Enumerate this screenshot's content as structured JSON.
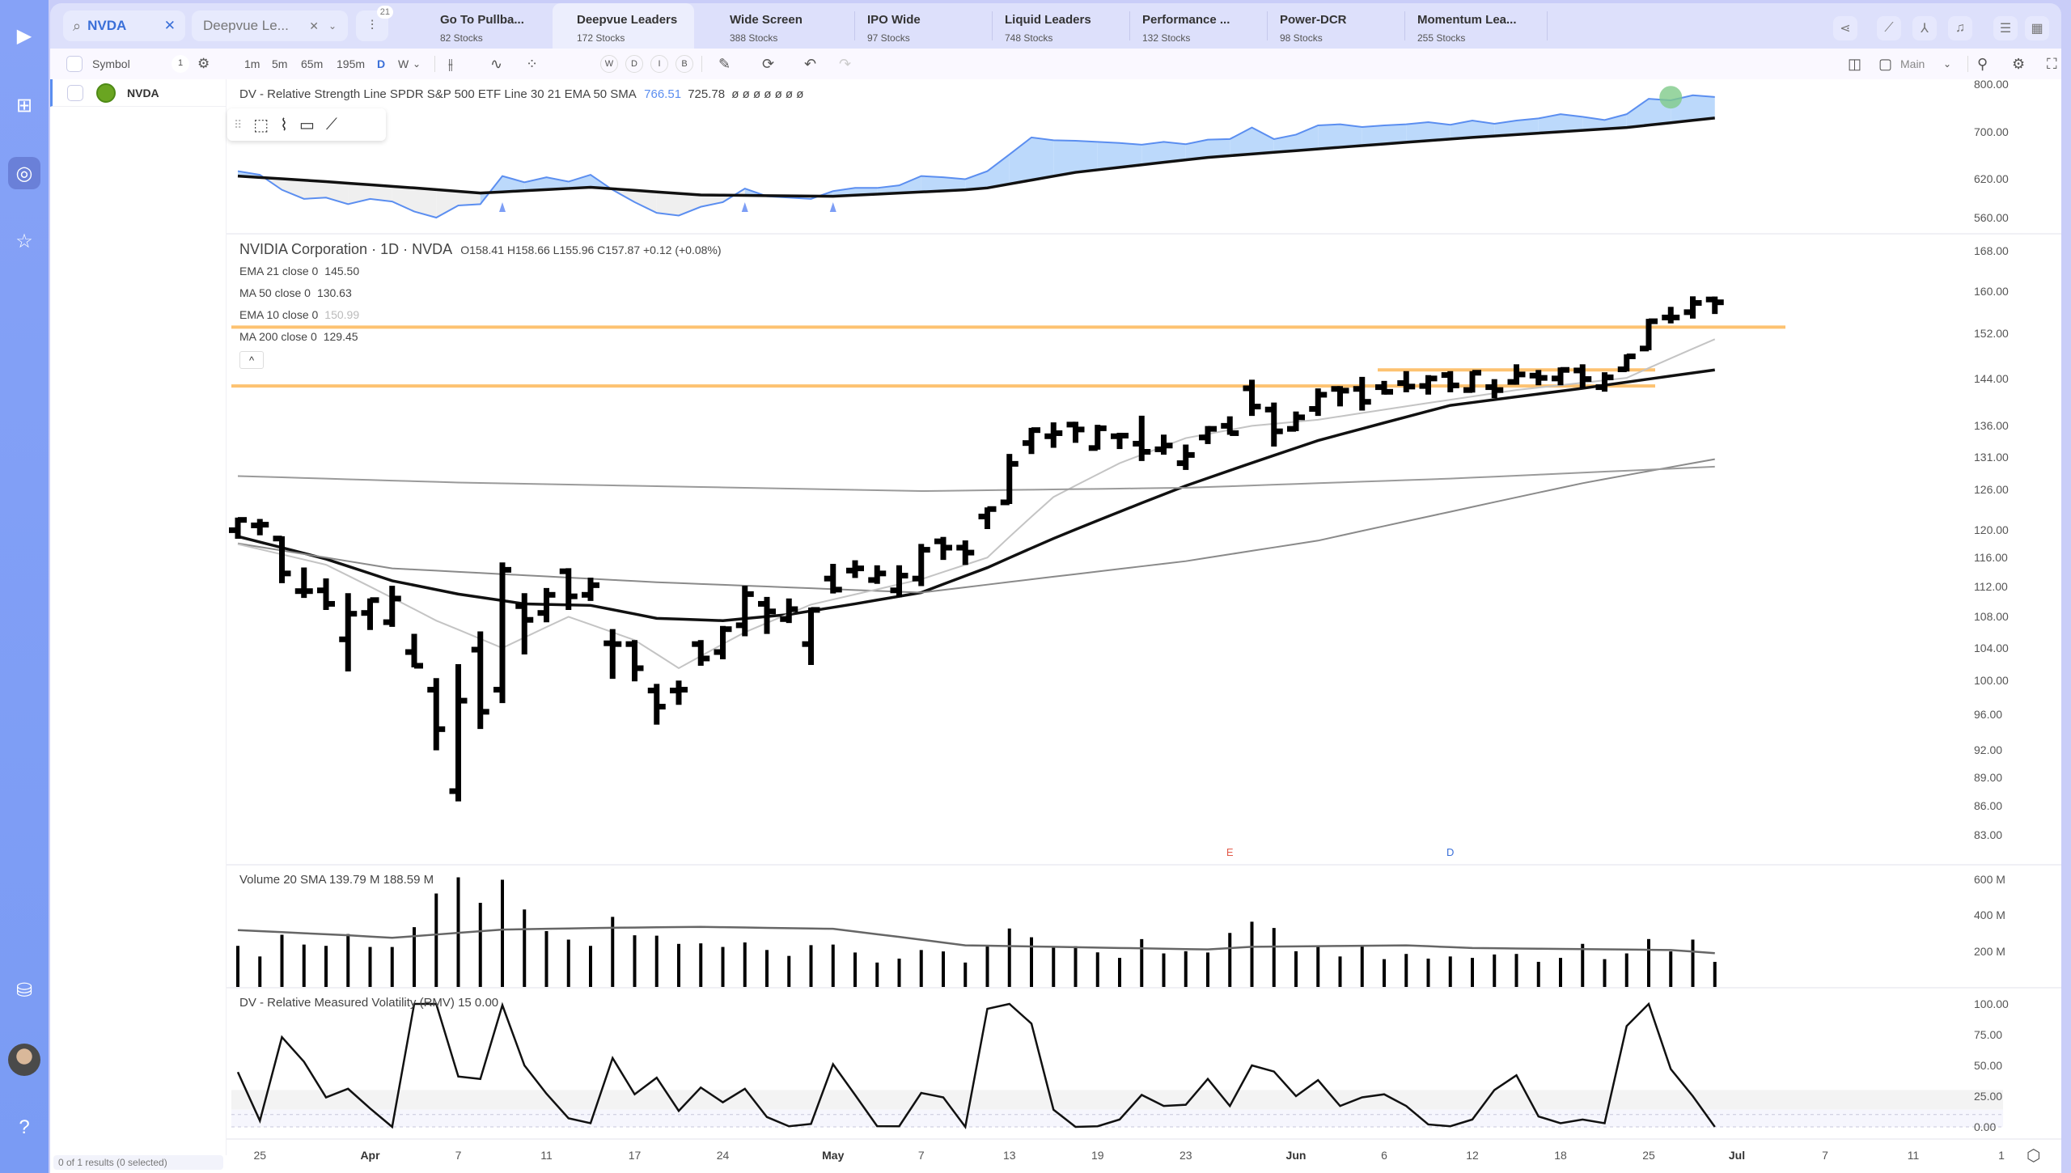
{
  "sidebar": {
    "items": [
      {
        "icon": "logo-play-icon",
        "glyph": "▶"
      },
      {
        "icon": "layout-icon",
        "glyph": "⊞"
      },
      {
        "icon": "radar-icon",
        "glyph": "◎",
        "active": true
      },
      {
        "icon": "star-icon",
        "glyph": "☆"
      },
      {
        "icon": "learn-icon",
        "glyph": "⛁"
      },
      {
        "icon": "avatar",
        "glyph": ""
      },
      {
        "icon": "help-icon",
        "glyph": "?"
      }
    ]
  },
  "topbar": {
    "search_value": "NVDA",
    "watchlist_value": "Deepvue Le...",
    "filter_badge": "21",
    "tabs": [
      {
        "title": "Go To Pullba...",
        "sub": "82 Stocks"
      },
      {
        "title": "Deepvue Leaders",
        "sub": "172 Stocks",
        "active": true
      },
      {
        "title": "Wide Screen",
        "sub": "388 Stocks"
      },
      {
        "title": "IPO Wide",
        "sub": "97 Stocks"
      },
      {
        "title": "Liquid Leaders",
        "sub": "748 Stocks"
      },
      {
        "title": "Performance ...",
        "sub": "132 Stocks"
      },
      {
        "title": "Power-DCR",
        "sub": "98 Stocks"
      },
      {
        "title": "Momentum Lea...",
        "sub": "255 Stocks"
      }
    ]
  },
  "toolbar": {
    "symbol_label": "Symbol",
    "count": "1",
    "timeframes": [
      "1m",
      "5m",
      "65m",
      "195m",
      "D",
      "W"
    ],
    "active_timeframe": "D",
    "period_buttons": [
      "W",
      "D",
      "I",
      "B"
    ],
    "layout_label": "Main"
  },
  "list": {
    "rows": [
      {
        "symbol": "NVDA"
      }
    ],
    "status": "0 of 1 results (0 selected)"
  },
  "rs_legend": {
    "name": "DV - Relative Strength Line SPDR S&P 500 ETF Line 30 21 EMA 50 SMA",
    "value1": "766.51",
    "value2": "725.78",
    "extras": "ø ø ø ø ø ø ø"
  },
  "price_legend": {
    "title": "NVIDIA Corporation · 1D · NVDA",
    "ohlc": "O158.41 H158.66 L155.96 C157.87 +0.12 (+0.08%)",
    "studies": [
      {
        "label": "EMA 21 close 0",
        "value": "145.50"
      },
      {
        "label": "MA 50 close 0",
        "value": "130.63"
      },
      {
        "label": "EMA 10 close 0",
        "value": "150.99",
        "muted": true
      },
      {
        "label": "MA 200 close 0",
        "value": "129.45"
      }
    ]
  },
  "volume_legend": "Volume 20 SMA  139.79 M  188.59 M",
  "rmv_legend": "DV - Relative Measured Volatility (RMV) 15  0.00",
  "colors": {
    "rs_line": "#5b8ef0",
    "rs_fill_above": "#bcd9fb",
    "rs_fill_below": "#efefef",
    "level": "#fdc271",
    "bars": "#000000",
    "earnings": "#e25a4a",
    "dividend": "#3a6fd8"
  },
  "chart_data": {
    "type": "ohlc",
    "price_scale": "log",
    "dates": [
      "Mar 24",
      "Mar 25",
      "Mar 26",
      "Mar 27",
      "Mar 28",
      "Mar 31",
      "Apr 1",
      "Apr 2",
      "Apr 3",
      "Apr 4",
      "Apr 7",
      "Apr 8",
      "Apr 9",
      "Apr 10",
      "Apr 11",
      "Apr 14",
      "Apr 15",
      "Apr 16",
      "Apr 17",
      "Apr 21",
      "Apr 22",
      "Apr 23",
      "Apr 24",
      "Apr 25",
      "Apr 28",
      "Apr 29",
      "Apr 30",
      "May 1",
      "May 2",
      "May 5",
      "May 6",
      "May 7",
      "May 8",
      "May 9",
      "May 12",
      "May 13",
      "May 14",
      "May 15",
      "May 16",
      "May 19",
      "May 20",
      "May 21",
      "May 22",
      "May 23",
      "May 27",
      "May 28",
      "May 29",
      "May 30",
      "Jun 2",
      "Jun 3",
      "Jun 4",
      "Jun 5",
      "Jun 6",
      "Jun 9",
      "Jun 10",
      "Jun 11",
      "Jun 12",
      "Jun 13",
      "Jun 16",
      "Jun 17",
      "Jun 18",
      "Jun 20",
      "Jun 23",
      "Jun 24",
      "Jun 25",
      "Jun 26",
      "Jun 27",
      "Jun 30"
    ],
    "ohlc": [
      [
        119.9,
        121.5,
        118.9,
        121.4
      ],
      [
        120.6,
        121.3,
        119.4,
        120.7
      ],
      [
        118.7,
        118.8,
        112.7,
        113.8
      ],
      [
        111.4,
        114.4,
        110.7,
        111.4
      ],
      [
        111.5,
        112.9,
        109.1,
        109.7
      ],
      [
        105.1,
        110.9,
        101.3,
        108.4
      ],
      [
        108.5,
        110.2,
        106.5,
        110.2
      ],
      [
        107.3,
        111.9,
        106.9,
        110.4
      ],
      [
        103.5,
        105.6,
        101.8,
        101.8
      ],
      [
        98.9,
        100.1,
        92.1,
        94.3
      ],
      [
        87.5,
        101.8,
        86.6,
        97.6
      ],
      [
        103.8,
        105.9,
        94.5,
        96.3
      ],
      [
        98.9,
        115.1,
        97.5,
        114.3
      ],
      [
        109.4,
        110.9,
        103.4,
        107.6
      ],
      [
        108.5,
        111.6,
        107.5,
        110.9
      ],
      [
        114.1,
        114.3,
        109.1,
        110.7
      ],
      [
        110.9,
        113.0,
        110.3,
        112.2
      ],
      [
        104.6,
        106.2,
        100.4,
        104.5
      ],
      [
        104.5,
        104.8,
        100.1,
        101.5
      ],
      [
        98.8,
        99.4,
        95.0,
        96.9
      ],
      [
        98.8,
        99.8,
        97.3,
        98.9
      ],
      [
        104.5,
        104.8,
        102.0,
        102.7
      ],
      [
        103.5,
        106.6,
        102.8,
        106.4
      ],
      [
        106.9,
        111.9,
        105.7,
        111.0
      ],
      [
        109.7,
        110.4,
        106.0,
        108.7
      ],
      [
        107.7,
        110.2,
        107.4,
        109.0
      ],
      [
        104.5,
        109.0,
        102.1,
        108.9
      ],
      [
        113.1,
        114.9,
        111.3,
        111.6
      ],
      [
        114.2,
        115.4,
        113.4,
        114.5
      ],
      [
        112.9,
        114.7,
        112.6,
        113.8
      ],
      [
        111.5,
        114.7,
        110.8,
        113.5
      ],
      [
        113.1,
        117.7,
        112.3,
        117.1
      ],
      [
        118.3,
        118.7,
        115.9,
        117.4
      ],
      [
        117.4,
        118.2,
        115.2,
        116.7
      ],
      [
        121.9,
        123.0,
        120.3,
        123.0
      ],
      [
        124.0,
        131.2,
        124.0,
        129.9
      ],
      [
        133.2,
        135.4,
        131.7,
        135.3
      ],
      [
        134.3,
        136.3,
        132.7,
        134.8
      ],
      [
        136.2,
        136.4,
        133.5,
        135.4
      ],
      [
        132.4,
        135.9,
        132.4,
        135.6
      ],
      [
        134.3,
        134.6,
        132.5,
        134.4
      ],
      [
        133.1,
        137.4,
        130.6,
        131.8
      ],
      [
        132.2,
        134.3,
        131.6,
        132.8
      ],
      [
        130.0,
        132.7,
        129.2,
        131.3
      ],
      [
        134.1,
        135.7,
        133.3,
        135.5
      ],
      [
        136.0,
        137.3,
        134.8,
        134.8
      ],
      [
        142.3,
        143.5,
        137.9,
        139.2
      ],
      [
        138.7,
        139.6,
        132.9,
        135.1
      ],
      [
        135.5,
        138.1,
        135.4,
        137.4
      ],
      [
        138.8,
        142.0,
        137.9,
        141.2
      ],
      [
        142.2,
        142.4,
        139.5,
        141.9
      ],
      [
        142.2,
        144.0,
        138.8,
        140.0
      ],
      [
        142.5,
        143.3,
        141.5,
        141.7
      ],
      [
        143.2,
        145.0,
        141.9,
        142.6
      ],
      [
        142.7,
        144.3,
        141.5,
        144.0
      ],
      [
        144.6,
        145.0,
        141.9,
        142.8
      ],
      [
        142.0,
        145.0,
        141.85,
        145.0
      ],
      [
        142.5,
        143.6,
        140.9,
        142.0
      ],
      [
        143.4,
        146.2,
        143.2,
        144.7
      ],
      [
        144.5,
        145.2,
        143.1,
        144.1
      ],
      [
        144.0,
        145.65,
        143.1,
        145.5
      ],
      [
        145.4,
        146.2,
        142.6,
        143.9
      ],
      [
        142.5,
        144.8,
        142.0,
        144.2
      ],
      [
        145.6,
        147.96,
        145.5,
        147.9
      ],
      [
        149.3,
        154.45,
        149.3,
        154.3
      ],
      [
        155.0,
        156.7,
        154.2,
        155.0
      ],
      [
        156.0,
        158.7,
        155.1,
        157.75
      ],
      [
        158.41,
        158.66,
        155.96,
        157.87
      ]
    ],
    "moving_averages": [
      {
        "name": "EMA 21",
        "color": "#111111",
        "points": [
          [
            "Mar 24",
            119
          ],
          [
            "Mar 28",
            115.8
          ],
          [
            "Apr 2",
            112.8
          ],
          [
            "Apr 7",
            111
          ],
          [
            "Apr 10",
            109.7
          ],
          [
            "Apr 15",
            109.5
          ],
          [
            "Apr 21",
            107.8
          ],
          [
            "Apr 24",
            107.5
          ],
          [
            "Apr 29",
            108.3
          ],
          [
            "May 2",
            109.7
          ],
          [
            "May 7",
            111.2
          ],
          [
            "May 12",
            114.6
          ],
          [
            "May 15",
            118.7
          ],
          [
            "May 23",
            126.5
          ],
          [
            "Jun 3",
            133.6
          ],
          [
            "Jun 11",
            139.4
          ],
          [
            "Jun 20",
            142.3
          ],
          [
            "Jun 30",
            145.5
          ]
        ]
      },
      {
        "name": "MA 50",
        "color": "#8a8a8a",
        "points": [
          [
            "Mar 24",
            118
          ],
          [
            "Apr 2",
            114.5
          ],
          [
            "Apr 21",
            112.6
          ],
          [
            "May 7",
            111.2
          ],
          [
            "May 23",
            115.5
          ],
          [
            "Jun 3",
            118.4
          ],
          [
            "Jun 11",
            122.6
          ],
          [
            "Jun 20",
            126.9
          ],
          [
            "Jun 30",
            130.63
          ]
        ]
      },
      {
        "name": "EMA 10",
        "color": "#c4c4c4",
        "points": [
          [
            "Mar 24",
            117.9
          ],
          [
            "Mar 28",
            115
          ],
          [
            "Apr 4",
            107.5
          ],
          [
            "Apr 9",
            104
          ],
          [
            "Apr 14",
            108
          ],
          [
            "Apr 17",
            105
          ],
          [
            "Apr 22",
            101.5
          ],
          [
            "Apr 25",
            106
          ],
          [
            "Apr 30",
            109.6
          ],
          [
            "May 7",
            113
          ],
          [
            "May 12",
            116
          ],
          [
            "May 15",
            124.8
          ],
          [
            "May 20",
            130
          ],
          [
            "May 23",
            134
          ],
          [
            "May 29",
            136
          ],
          [
            "Jun 3",
            137
          ],
          [
            "Jun 10",
            139.8
          ],
          [
            "Jun 16",
            142
          ],
          [
            "Jun 24",
            144.1
          ],
          [
            "Jun 30",
            150.99
          ]
        ]
      },
      {
        "name": "MA 200",
        "color": "#9a9a9a",
        "points": [
          [
            "Mar 24",
            128
          ],
          [
            "Apr 7",
            127
          ],
          [
            "May 7",
            125.7
          ],
          [
            "May 23",
            126.2
          ],
          [
            "Jun 11",
            127.6
          ],
          [
            "Jun 30",
            129.45
          ]
        ]
      }
    ],
    "price_levels": [
      {
        "value": 153.2,
        "from": "Mar 24",
        "to": "extend"
      },
      {
        "value": 142.7,
        "from": "Mar 24",
        "to": "Jun 25"
      },
      {
        "value": 145.5,
        "from": "Jun 6",
        "to": "Jun 25"
      }
    ],
    "events": [
      {
        "date": "May 28",
        "label": "E"
      },
      {
        "date": "Jun 11",
        "label": "D"
      }
    ],
    "price_ticks": [
      168,
      160,
      152,
      144,
      136,
      131,
      126,
      120,
      116,
      112,
      108,
      104,
      100,
      96,
      92,
      89,
      86,
      83
    ],
    "rs_ticks": [
      800,
      700,
      620,
      560
    ],
    "rs_line": [
      632,
      626,
      602,
      588,
      590,
      580,
      588,
      584,
      569,
      560,
      578,
      580,
      624,
      614,
      622,
      615,
      626,
      602,
      583,
      567,
      563,
      576,
      583,
      604,
      592,
      590,
      588,
      600,
      605,
      605,
      609,
      624,
      622,
      619,
      632,
      660,
      690,
      685,
      684,
      682,
      680,
      677,
      682,
      678,
      686,
      687,
      708,
      687,
      695,
      712,
      714,
      709,
      712,
      714,
      718,
      713,
      721,
      715,
      721,
      725,
      733,
      728,
      722,
      733,
      763,
      760,
      770,
      766.51
    ],
    "rs_sma": [
      [
        "Mar 24",
        624
      ],
      [
        "Mar 28",
        615
      ],
      [
        "Apr 3",
        605
      ],
      [
        "Apr 8",
        597
      ],
      [
        "Apr 15",
        606
      ],
      [
        "Apr 23",
        594
      ],
      [
        "May 1",
        592
      ],
      [
        "May 9",
        602
      ],
      [
        "May 12",
        605
      ],
      [
        "May 16",
        630
      ],
      [
        "May 27",
        655
      ],
      [
        "Jun 12",
        690
      ],
      [
        "Jun 24",
        708
      ],
      [
        "Jun 30",
        725.78
      ]
    ],
    "rs_markers": [
      "Apr 9",
      "Apr 25",
      "May 1"
    ],
    "volume_ticks": [
      "600 M",
      "400 M",
      "200 M"
    ],
    "volume_max": 600,
    "volume": [
      229,
      170,
      291,
      236,
      229,
      295,
      223,
      223,
      333,
      521,
      611,
      469,
      598,
      432,
      311,
      264,
      229,
      391,
      288,
      286,
      240,
      243,
      223,
      248,
      206,
      173,
      233,
      236,
      192,
      136,
      158,
      206,
      198,
      136,
      227,
      326,
      277,
      226,
      227,
      193,
      162,
      267,
      187,
      199,
      192,
      301,
      364,
      329,
      199,
      229,
      170,
      230,
      155,
      184,
      158,
      170,
      162,
      181,
      184,
      140,
      162,
      240,
      155,
      187,
      267,
      198,
      264,
      139.79
    ],
    "volume_sma": [
      [
        "Mar 24",
        317
      ],
      [
        "Mar 31",
        288
      ],
      [
        "Apr 2",
        274
      ],
      [
        "Apr 9",
        320
      ],
      [
        "Apr 16",
        330
      ],
      [
        "Apr 23",
        335
      ],
      [
        "May 1",
        324
      ],
      [
        "May 6",
        279
      ],
      [
        "May 9",
        232
      ],
      [
        "May 27",
        209
      ],
      [
        "May 29",
        224
      ],
      [
        "Jun 9",
        232
      ],
      [
        "Jun 12",
        217
      ],
      [
        "Jun 26",
        206
      ],
      [
        "Jun 30",
        188.59
      ]
    ],
    "rmv_ticks": [
      100,
      75,
      50,
      25,
      0
    ],
    "rmv": [
      44.6,
      5,
      73,
      53,
      24,
      31,
      15,
      0,
      100,
      100,
      41,
      39,
      99,
      50,
      27,
      7,
      3,
      56,
      26.5,
      40,
      13,
      32,
      20,
      31,
      8,
      0.5,
      2.4,
      51,
      26,
      0.6,
      0.5,
      27.6,
      24,
      0,
      96,
      100,
      84,
      14,
      0,
      0.5,
      6,
      26,
      17,
      18,
      39,
      17,
      50,
      45,
      25,
      38,
      17,
      24,
      26.5,
      17,
      2,
      0.5,
      6,
      30,
      42,
      8.5,
      3,
      6,
      3,
      82,
      100,
      47,
      25,
      0
    ],
    "time_labels": [
      {
        "at": "Mar 25",
        "text": "25"
      },
      {
        "at": "Apr 1",
        "text": "Apr",
        "bold": true
      },
      {
        "at": "Apr 7",
        "text": "7"
      },
      {
        "at": "Apr 11",
        "text": "11"
      },
      {
        "at": "Apr 17",
        "text": "17"
      },
      {
        "at": "Apr 24",
        "text": "24"
      },
      {
        "at": "May 1",
        "text": "May",
        "bold": true
      },
      {
        "at": "May 7",
        "text": "7"
      },
      {
        "at": "May 13",
        "text": "13"
      },
      {
        "at": "May 19",
        "text": "19"
      },
      {
        "at": "May 23",
        "text": "23"
      },
      {
        "at": "Jun 2",
        "text": "Jun",
        "bold": true
      },
      {
        "at": "Jun 6",
        "text": "6"
      },
      {
        "at": "Jun 12",
        "text": "12"
      },
      {
        "at": "Jun 18",
        "text": "18"
      },
      {
        "at": "Jun 25",
        "text": "25"
      },
      {
        "future": 1,
        "text": "Jul",
        "bold": true
      },
      {
        "future": 5,
        "text": "7"
      },
      {
        "future": 9,
        "text": "11"
      },
      {
        "future": 13,
        "text": "1"
      }
    ]
  }
}
